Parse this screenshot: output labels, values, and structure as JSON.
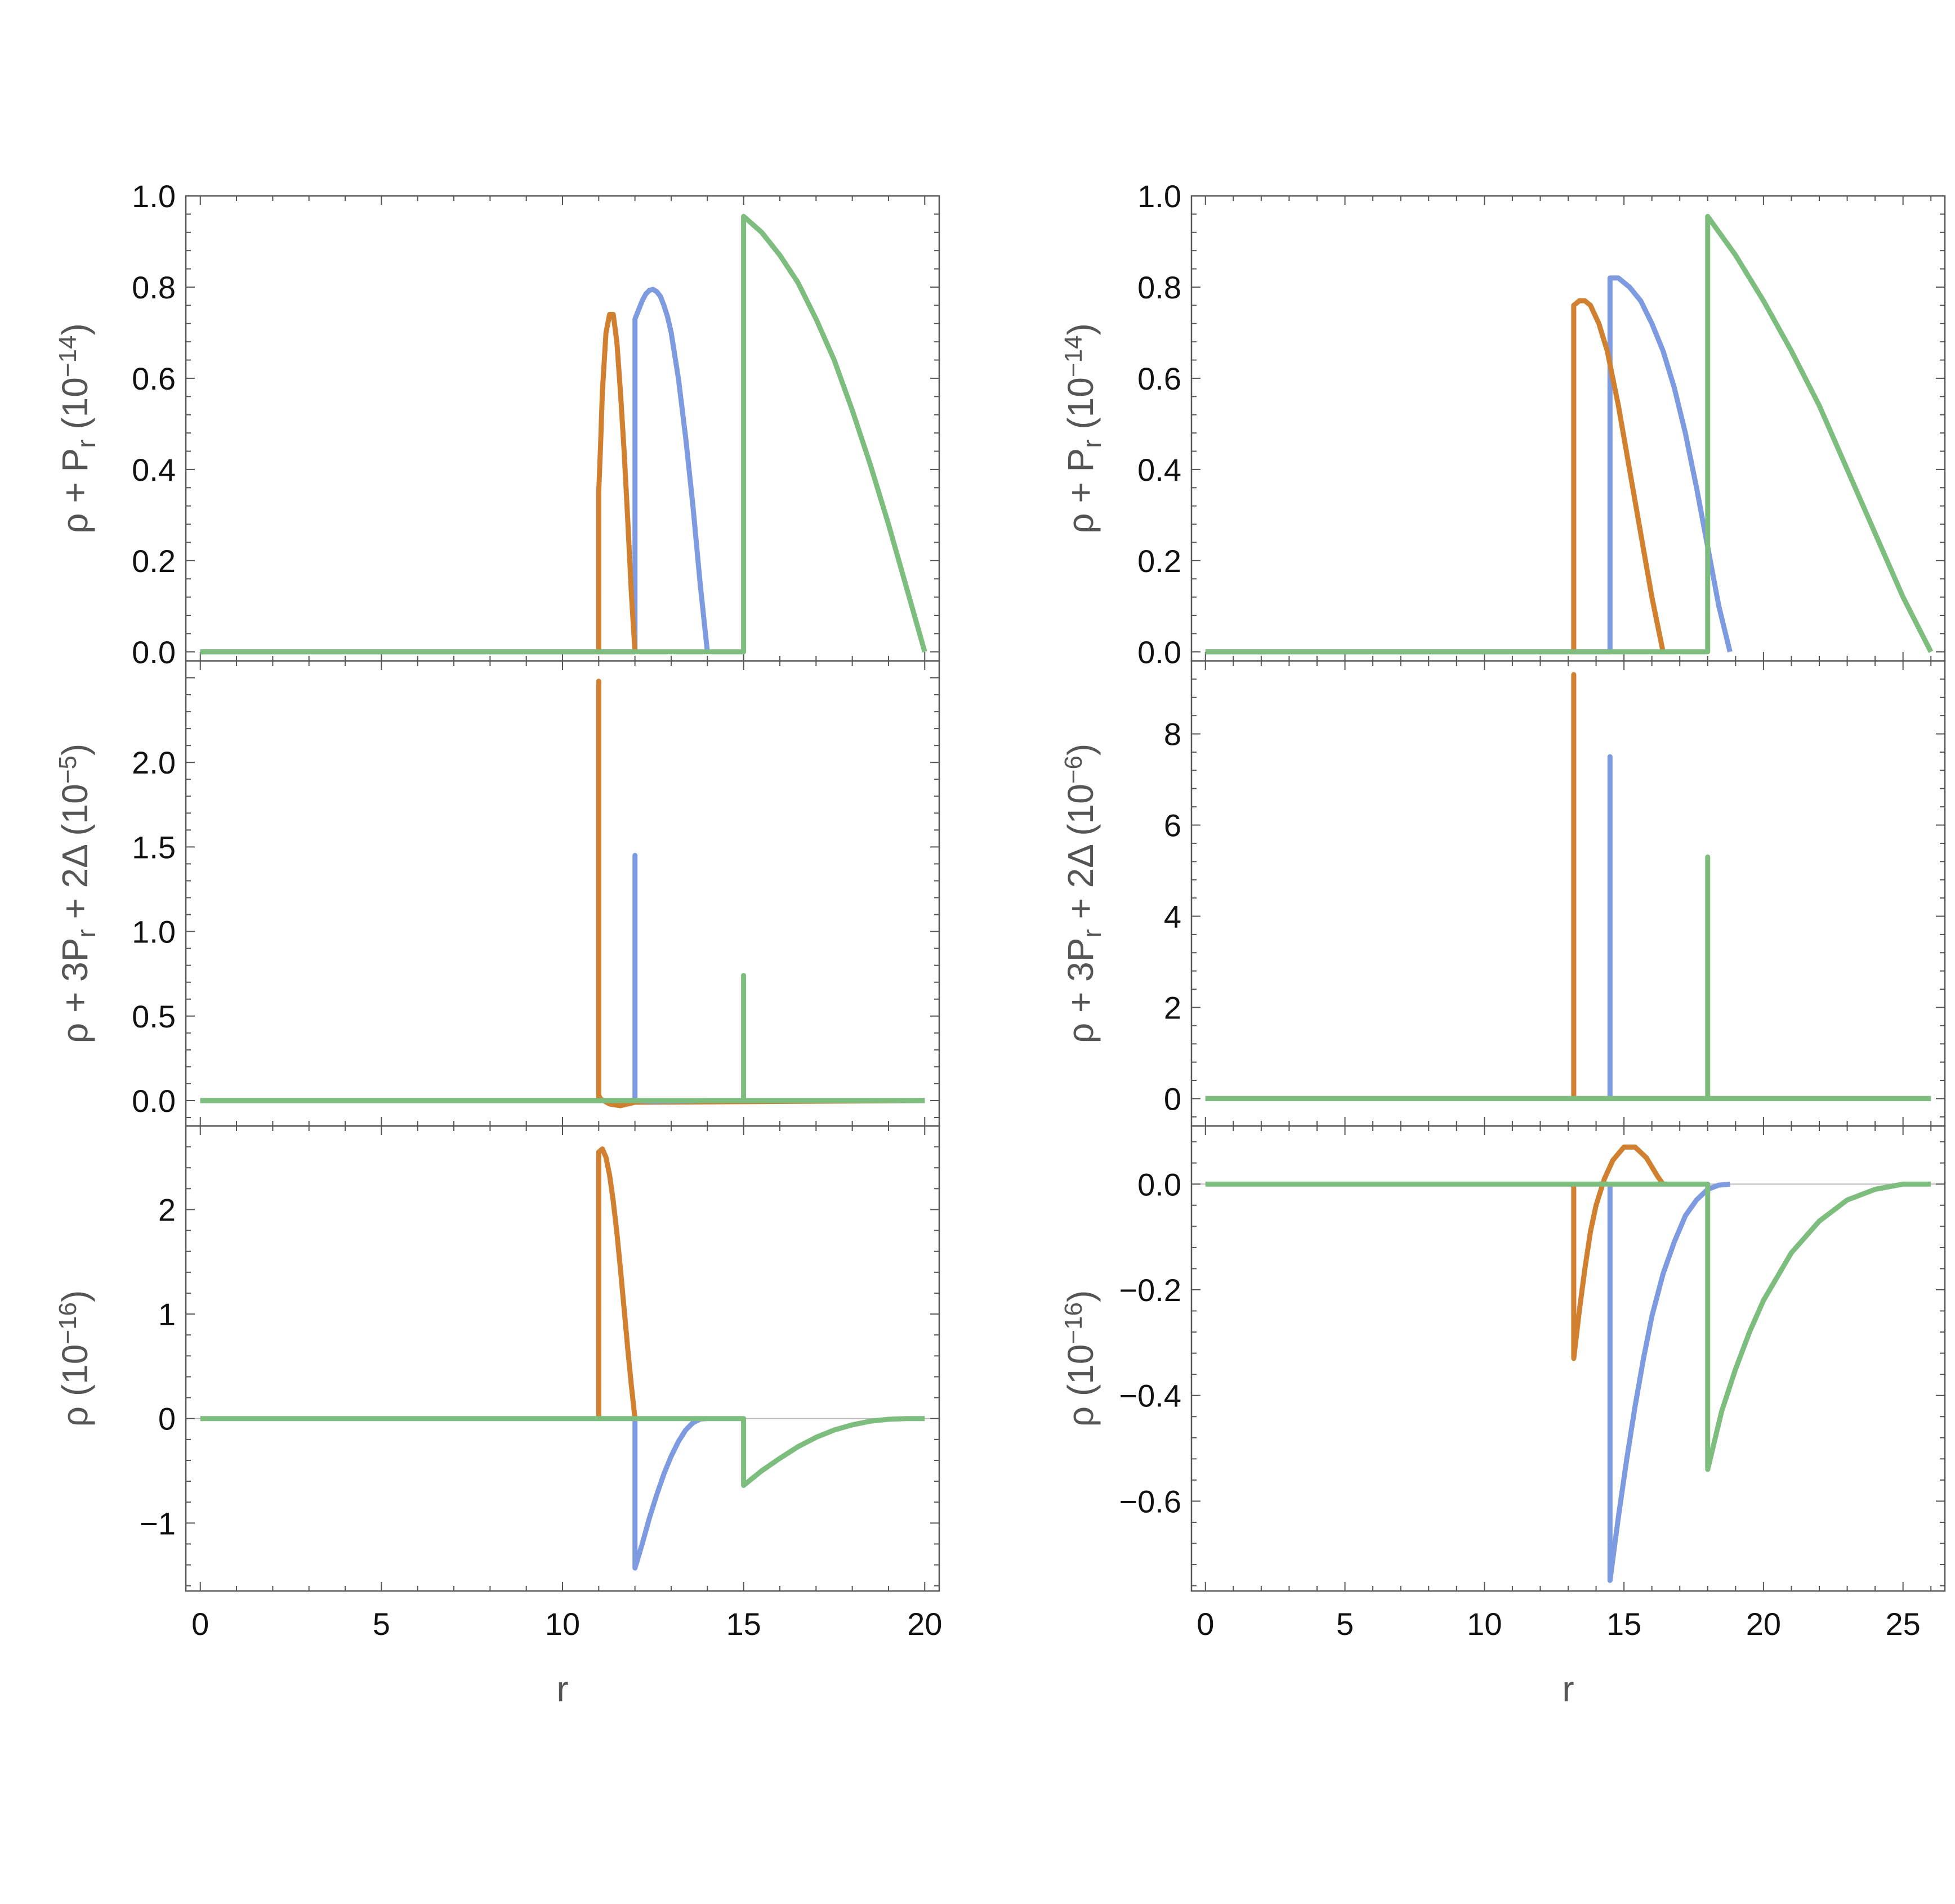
{
  "colors": {
    "orange": "#d0802f",
    "blue": "#7e9ae0",
    "green": "#7dbd7d"
  },
  "chart_data": [
    {
      "id": "left",
      "type": "line",
      "xlabel": "r",
      "xlim": [
        -0.4,
        20.4
      ],
      "xticks": [
        0,
        5,
        10,
        15,
        20
      ],
      "xticklabels": [
        "0",
        "5",
        "10",
        "15",
        "20"
      ],
      "panels": [
        {
          "ylabel": "ρ + P_r (10^{−14})",
          "ylabel_html": "ρ + P<tspan baseline-shift='-30%' font-size='46'>r</tspan> (10<tspan baseline-shift='45%' font-size='44'>−14</tspan>)",
          "ylim": [
            -0.02,
            1.0
          ],
          "yticks": [
            0.0,
            0.2,
            0.4,
            0.6,
            0.8,
            1.0
          ],
          "yticklabels": [
            "0.0",
            "0.2",
            "0.4",
            "0.6",
            "0.8",
            "1.0"
          ],
          "zero_line": false,
          "series": [
            {
              "color": "blue",
              "x": [
                0,
                12,
                12,
                12.1,
                12.2,
                12.3,
                12.4,
                12.5,
                12.6,
                12.7,
                12.8,
                12.9,
                13.0,
                13.2,
                13.4,
                13.6,
                13.8,
                14.0
              ],
              "y": [
                0,
                0,
                0.73,
                0.75,
                0.77,
                0.785,
                0.793,
                0.795,
                0.79,
                0.78,
                0.76,
                0.735,
                0.7,
                0.6,
                0.47,
                0.32,
                0.15,
                0
              ]
            },
            {
              "color": "orange",
              "x": [
                11,
                11,
                11.05,
                11.1,
                11.2,
                11.3,
                11.4,
                11.5,
                11.6,
                11.7,
                11.8,
                11.9,
                12.0
              ],
              "y": [
                0,
                0.35,
                0.45,
                0.57,
                0.7,
                0.74,
                0.74,
                0.68,
                0.57,
                0.44,
                0.29,
                0.13,
                0
              ]
            },
            {
              "color": "green",
              "x": [
                0,
                15,
                15,
                15.5,
                16,
                16.5,
                17,
                17.5,
                18,
                18.5,
                19,
                19.5,
                20
              ],
              "y": [
                0,
                0,
                0.955,
                0.92,
                0.87,
                0.81,
                0.73,
                0.64,
                0.53,
                0.41,
                0.28,
                0.14,
                0
              ]
            }
          ]
        },
        {
          "ylabel": "ρ + 3P_r + 2Δ (10^{−5})",
          "ylabel_html": "ρ + 3P<tspan baseline-shift='-30%' font-size='46'>r</tspan> + 2Δ  (10<tspan baseline-shift='45%' font-size='44'>−5</tspan>)",
          "ylim": [
            -0.15,
            2.6
          ],
          "yticks": [
            0.0,
            0.5,
            1.0,
            1.5,
            2.0
          ],
          "yticklabels": [
            "0.0",
            "0.5",
            "1.0",
            "1.5",
            "2.0"
          ],
          "zero_line": false,
          "series": [
            {
              "color": "orange",
              "x": [
                0,
                11,
                11,
                11,
                11.05,
                11.3,
                11.6,
                12.0,
                20
              ],
              "y": [
                0,
                0,
                2.48,
                0.03,
                0.01,
                -0.02,
                -0.03,
                -0.01,
                0
              ]
            },
            {
              "color": "blue",
              "x": [
                0,
                12,
                12,
                12,
                12.5,
                14,
                20
              ],
              "y": [
                0,
                0,
                1.45,
                0,
                -0.005,
                0,
                0
              ]
            },
            {
              "color": "green",
              "x": [
                0,
                15,
                15,
                15,
                20
              ],
              "y": [
                0,
                0,
                0.74,
                0,
                0
              ]
            }
          ]
        },
        {
          "ylabel": "ρ (10^{−16})",
          "ylabel_html": "ρ (10<tspan baseline-shift='45%' font-size='44'>−16</tspan>)",
          "ylim": [
            -1.65,
            2.8
          ],
          "yticks": [
            -1,
            0,
            1,
            2
          ],
          "yticklabels": [
            "−1",
            "0",
            "1",
            "2"
          ],
          "zero_line": true,
          "series": [
            {
              "color": "orange",
              "x": [
                11,
                11,
                11.1,
                11.2,
                11.3,
                11.4,
                11.5,
                11.6,
                11.7,
                11.8,
                11.9,
                12.0
              ],
              "y": [
                0,
                2.55,
                2.58,
                2.5,
                2.33,
                2.08,
                1.78,
                1.43,
                1.05,
                0.67,
                0.32,
                0
              ]
            },
            {
              "color": "blue",
              "x": [
                12,
                12,
                12.2,
                12.4,
                12.6,
                12.8,
                13.0,
                13.2,
                13.4,
                13.6,
                13.8,
                14.0
              ],
              "y": [
                0,
                -1.43,
                -1.2,
                -0.95,
                -0.73,
                -0.53,
                -0.36,
                -0.22,
                -0.11,
                -0.04,
                -0.005,
                0
              ]
            },
            {
              "color": "green",
              "x": [
                0,
                15,
                15,
                15.5,
                16,
                16.5,
                17,
                17.5,
                18,
                18.5,
                19,
                19.5,
                20
              ],
              "y": [
                0,
                0,
                -0.64,
                -0.5,
                -0.38,
                -0.27,
                -0.18,
                -0.11,
                -0.06,
                -0.025,
                -0.007,
                0,
                0
              ]
            }
          ]
        }
      ]
    },
    {
      "id": "right",
      "type": "line",
      "xlabel": "r",
      "xlim": [
        -0.5,
        26.5
      ],
      "xticks": [
        0,
        5,
        10,
        15,
        20,
        25
      ],
      "xticklabels": [
        "0",
        "5",
        "10",
        "15",
        "20",
        "25"
      ],
      "panels": [
        {
          "ylabel": "ρ + P_r (10^{−14})",
          "ylabel_html": "ρ + P<tspan baseline-shift='-30%' font-size='46'>r</tspan> (10<tspan baseline-shift='45%' font-size='44'>−14</tspan>)",
          "ylim": [
            -0.02,
            1.0
          ],
          "yticks": [
            0.0,
            0.2,
            0.4,
            0.6,
            0.8,
            1.0
          ],
          "yticklabels": [
            "0.0",
            "0.2",
            "0.4",
            "0.6",
            "0.8",
            "1.0"
          ],
          "zero_line": false,
          "series": [
            {
              "color": "blue",
              "x": [
                0,
                14.5,
                14.5,
                14.8,
                15.2,
                15.6,
                16.0,
                16.4,
                16.8,
                17.2,
                17.6,
                18.0,
                18.4,
                18.8
              ],
              "y": [
                0,
                0,
                0.82,
                0.82,
                0.8,
                0.77,
                0.72,
                0.66,
                0.58,
                0.48,
                0.36,
                0.23,
                0.1,
                0
              ]
            },
            {
              "color": "orange",
              "x": [
                13.2,
                13.2,
                13.4,
                13.6,
                13.8,
                14.1,
                14.4,
                14.8,
                15.2,
                15.6,
                16.0,
                16.4
              ],
              "y": [
                0,
                0.76,
                0.77,
                0.77,
                0.76,
                0.72,
                0.66,
                0.54,
                0.4,
                0.26,
                0.12,
                0
              ]
            },
            {
              "color": "green",
              "x": [
                0,
                18,
                18,
                19,
                20,
                21,
                22,
                23,
                24,
                25,
                26
              ],
              "y": [
                0,
                0,
                0.955,
                0.87,
                0.77,
                0.66,
                0.54,
                0.4,
                0.26,
                0.12,
                0
              ]
            }
          ]
        },
        {
          "ylabel": "ρ + 3P_r + 2Δ (10^{−6})",
          "ylabel_html": "ρ + 3P<tspan baseline-shift='-30%' font-size='46'>r</tspan> + 2Δ (10<tspan baseline-shift='45%' font-size='44'>−6</tspan>)",
          "ylim": [
            -0.6,
            9.6
          ],
          "yticks": [
            0,
            2,
            4,
            6,
            8
          ],
          "yticklabels": [
            "0",
            "2",
            "4",
            "6",
            "8"
          ],
          "zero_line": false,
          "series": [
            {
              "color": "orange",
              "x": [
                0,
                13.2,
                13.2,
                13.2,
                26
              ],
              "y": [
                0,
                0,
                9.3,
                0,
                0
              ]
            },
            {
              "color": "blue",
              "x": [
                0,
                14.5,
                14.5,
                14.5,
                26
              ],
              "y": [
                0,
                0,
                7.5,
                0,
                0
              ]
            },
            {
              "color": "green",
              "x": [
                0,
                18,
                18,
                18,
                26
              ],
              "y": [
                0,
                0,
                5.3,
                0,
                0
              ]
            }
          ]
        },
        {
          "ylabel": "ρ (10^{−16})",
          "ylabel_html": "ρ (10<tspan baseline-shift='45%' font-size='44'>−16</tspan>)",
          "ylim": [
            -0.77,
            0.11
          ],
          "yticks": [
            -0.6,
            -0.4,
            -0.2,
            0.0
          ],
          "yticklabels": [
            "−0.6",
            "−0.4",
            "−0.2",
            "0.0"
          ],
          "zero_line": true,
          "series": [
            {
              "color": "orange",
              "x": [
                13.2,
                13.2,
                13.4,
                13.6,
                13.8,
                14.0,
                14.3,
                14.6,
                15.0,
                15.4,
                15.8,
                16.2,
                16.4
              ],
              "y": [
                0,
                -0.33,
                -0.24,
                -0.16,
                -0.09,
                -0.04,
                0.01,
                0.045,
                0.07,
                0.07,
                0.05,
                0.015,
                0
              ]
            },
            {
              "color": "blue",
              "x": [
                14.5,
                14.5,
                14.8,
                15.1,
                15.4,
                15.7,
                16.0,
                16.4,
                16.8,
                17.2,
                17.6,
                18.0,
                18.4,
                18.8
              ],
              "y": [
                0,
                -0.75,
                -0.63,
                -0.52,
                -0.42,
                -0.33,
                -0.25,
                -0.17,
                -0.11,
                -0.06,
                -0.03,
                -0.01,
                -0.002,
                0
              ]
            },
            {
              "color": "green",
              "x": [
                0,
                18,
                18,
                18.5,
                19,
                19.5,
                20,
                21,
                22,
                23,
                24,
                25,
                26
              ],
              "y": [
                0,
                0,
                -0.54,
                -0.43,
                -0.35,
                -0.28,
                -0.22,
                -0.13,
                -0.07,
                -0.03,
                -0.01,
                0,
                0
              ]
            }
          ]
        }
      ]
    }
  ]
}
